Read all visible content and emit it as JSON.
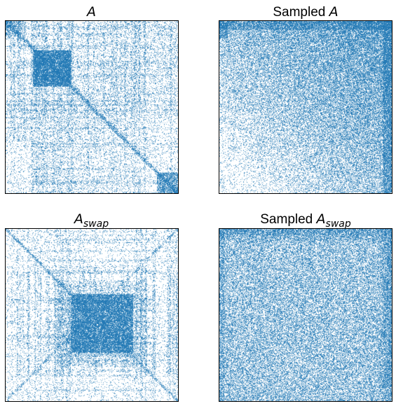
{
  "chart_data": [
    {
      "type": "scatter",
      "title": "A",
      "title_math": {
        "base": "A",
        "sub": ""
      },
      "prefix": "",
      "xlabel": "",
      "ylabel": "",
      "axis_ticks": false,
      "marker_color": "#1f77b4",
      "description_pattern": "sparse matrix: dense square block near upper-left, dense top-left corner, diagonal band, dense bottom-right corner",
      "xlim": [
        0,
        1
      ],
      "ylim": [
        0,
        1
      ]
    },
    {
      "type": "scatter",
      "title": "Sampled A",
      "title_math": {
        "base": "A",
        "sub": ""
      },
      "prefix": "Sampled ",
      "xlabel": "",
      "ylabel": "",
      "axis_ticks": false,
      "marker_color": "#1f77b4",
      "description_pattern": "dense upper-right triangle, fading toward lower-left",
      "xlim": [
        0,
        1
      ],
      "ylim": [
        0,
        1
      ]
    },
    {
      "type": "scatter",
      "title": "A_swap",
      "title_math": {
        "base": "A",
        "sub": "swap"
      },
      "prefix": "",
      "xlabel": "",
      "ylabel": "",
      "axis_ticks": false,
      "marker_color": "#1f77b4",
      "description_pattern": "sparse matrix with dense block in center, diagonal band",
      "xlim": [
        0,
        1
      ],
      "ylim": [
        0,
        1
      ]
    },
    {
      "type": "scatter",
      "title": "Sampled A_swap",
      "title_math": {
        "base": "A",
        "sub": "swap"
      },
      "prefix": "Sampled ",
      "xlabel": "",
      "ylabel": "",
      "axis_ticks": false,
      "marker_color": "#1f77b4",
      "description_pattern": "dense uniform fill, slightly denser at top and right edges",
      "xlim": [
        0,
        1
      ],
      "ylim": [
        0,
        1
      ]
    }
  ]
}
